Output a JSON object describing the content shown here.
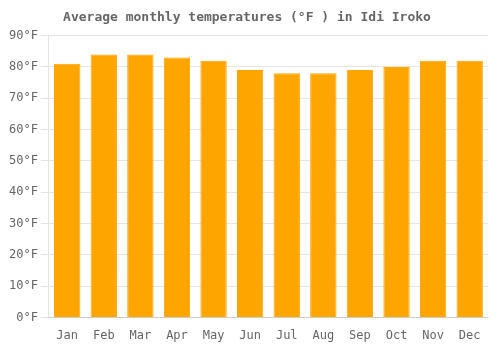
{
  "chart_data": {
    "type": "bar",
    "title": "Average monthly temperatures (°F ) in Idi Iroko",
    "categories": [
      "Jan",
      "Feb",
      "Mar",
      "Apr",
      "May",
      "Jun",
      "Jul",
      "Aug",
      "Sep",
      "Oct",
      "Nov",
      "Dec"
    ],
    "values": [
      81,
      84,
      84,
      83,
      82,
      79,
      78,
      78,
      79,
      80,
      82,
      82
    ],
    "color": "#FFA500",
    "ylim": [
      0,
      90
    ],
    "yticks": [
      {
        "value": 0,
        "label": "0°F"
      },
      {
        "value": 10,
        "label": "10°F"
      },
      {
        "value": 20,
        "label": "20°F"
      },
      {
        "value": 30,
        "label": "30°F"
      },
      {
        "value": 40,
        "label": "40°F"
      },
      {
        "value": 50,
        "label": "50°F"
      },
      {
        "value": 60,
        "label": "60°F"
      },
      {
        "value": 70,
        "label": "70°F"
      },
      {
        "value": 80,
        "label": "80°F"
      },
      {
        "value": 90,
        "label": "90°F"
      }
    ],
    "grid": true
  }
}
